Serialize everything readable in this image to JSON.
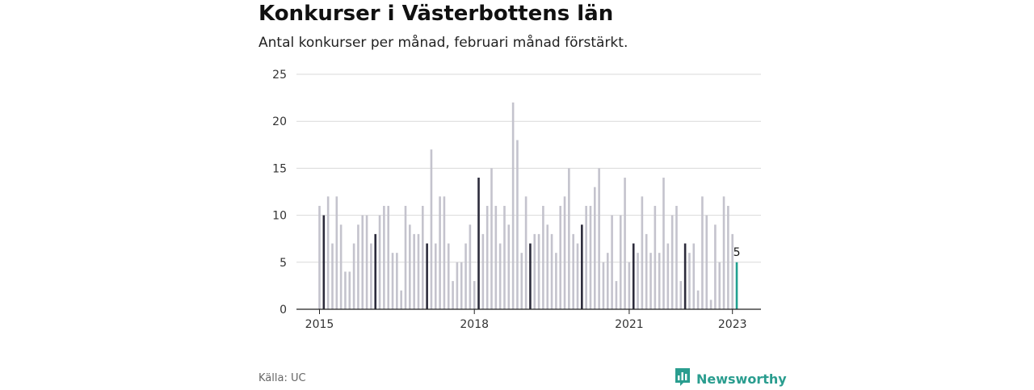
{
  "header": {
    "title": "Konkurser i Västerbottens län",
    "subtitle": "Antal konkurser per månad, februari månad förstärkt."
  },
  "footer": {
    "source": "Källa: UC",
    "brand": "Newsworthy",
    "brand_icon": "newsworthy-logo-icon"
  },
  "colors": {
    "bar": "#c4c3cd",
    "highlight": "#2c2b3b",
    "latest": "#20a090",
    "grid": "#d9d9d9",
    "axis": "#222222",
    "brand": "#2a9d8f"
  },
  "chart_data": {
    "type": "bar",
    "title": "Konkurser i Västerbottens län",
    "subtitle": "Antal konkurser per månad, februari månad förstärkt.",
    "start": "2015-01",
    "x_tick_labels": [
      "2015",
      "2018",
      "2021",
      "2023"
    ],
    "y_ticks": [
      0,
      5,
      10,
      15,
      20,
      25
    ],
    "ylim": [
      0,
      25
    ],
    "grid": true,
    "highlighted_month": "februari",
    "last_value_label": "5",
    "values": [
      11,
      10,
      12,
      7,
      12,
      9,
      4,
      4,
      7,
      9,
      10,
      10,
      7,
      8,
      10,
      11,
      11,
      6,
      6,
      2,
      11,
      9,
      8,
      8,
      11,
      7,
      17,
      7,
      12,
      12,
      7,
      3,
      5,
      5,
      7,
      9,
      3,
      14,
      8,
      11,
      15,
      11,
      7,
      11,
      9,
      22,
      18,
      6,
      12,
      7,
      8,
      8,
      11,
      9,
      8,
      6,
      11,
      12,
      15,
      8,
      7,
      9,
      11,
      11,
      13,
      15,
      5,
      6,
      10,
      3,
      10,
      14,
      5,
      7,
      6,
      12,
      8,
      6,
      11,
      6,
      14,
      7,
      10,
      11,
      3,
      7,
      6,
      7,
      2,
      12,
      10,
      1,
      9,
      5,
      12,
      11,
      8,
      5
    ]
  }
}
